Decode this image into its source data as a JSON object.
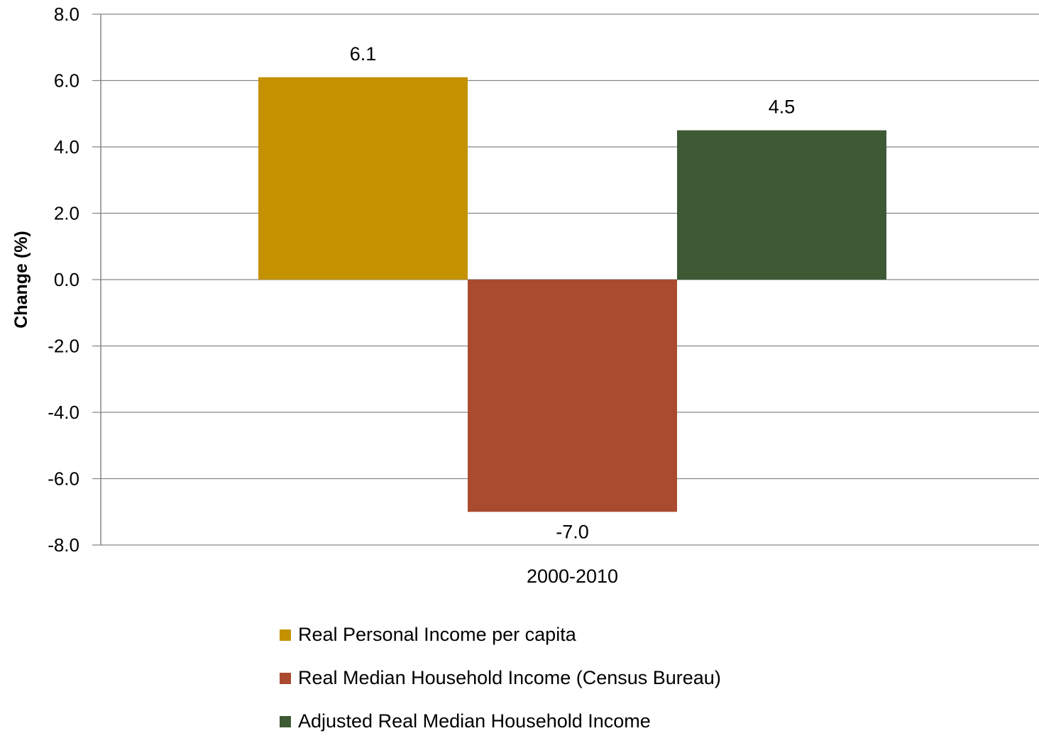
{
  "chart_data": {
    "type": "bar",
    "categories": [
      "2000-2010"
    ],
    "series": [
      {
        "name": "Real Personal Income per capita",
        "values": [
          6.1
        ],
        "color": "#C49200",
        "label": "6.1"
      },
      {
        "name": "Real Median Household Income (Census Bureau)",
        "values": [
          -7.0
        ],
        "color": "#AA4A2F",
        "label": "-7.0"
      },
      {
        "name": "Adjusted Real Median Household Income",
        "values": [
          4.5
        ],
        "color": "#3D5A35",
        "label": "4.5"
      }
    ],
    "ylabel": "Change (%)",
    "xlabel": "",
    "ylim": [
      -8.0,
      8.0
    ],
    "yticks": [
      "8.0",
      "6.0",
      "4.0",
      "2.0",
      "0.0",
      "-2.0",
      "-4.0",
      "-6.0",
      "-8.0"
    ],
    "grid": true,
    "legend_position": "bottom"
  }
}
